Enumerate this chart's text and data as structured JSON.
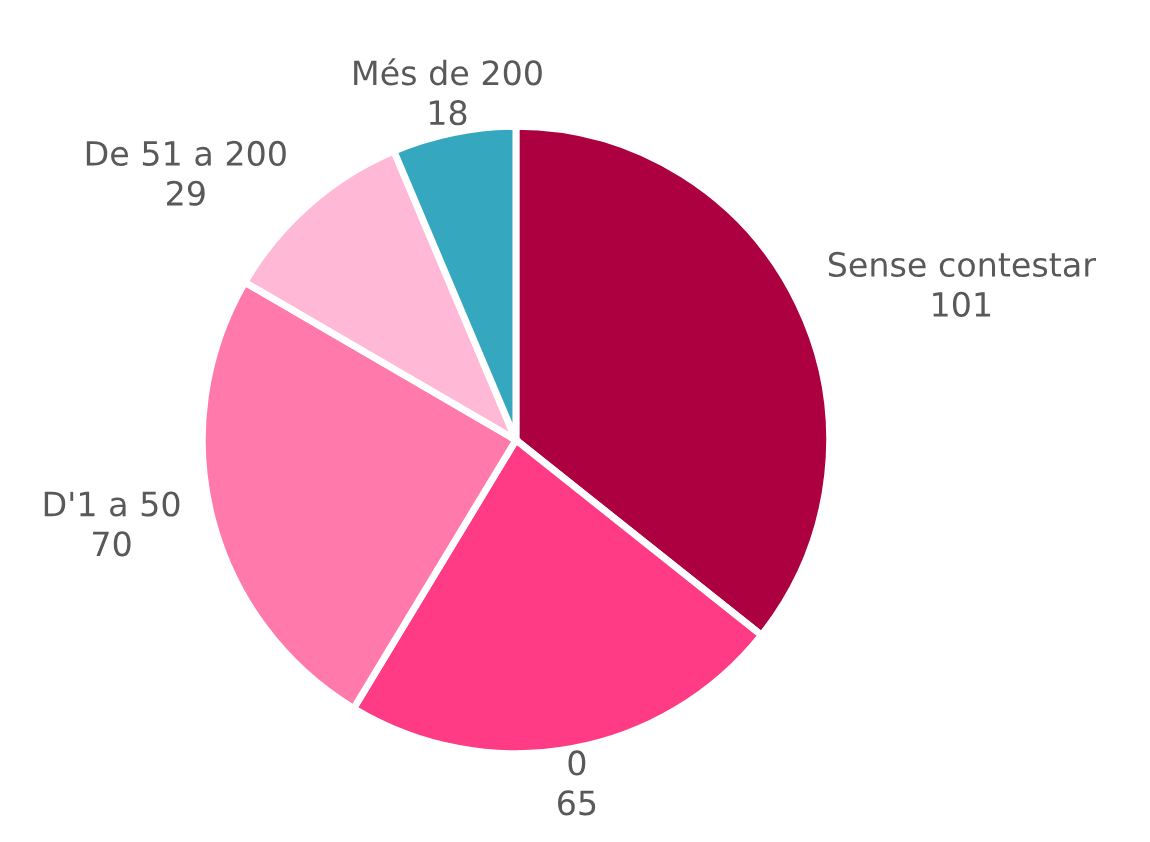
{
  "chart_data": {
    "type": "pie",
    "categories": [
      "Sense contestar",
      "0",
      "D'1 a 50",
      "De 51 a 200",
      "Més de 200"
    ],
    "values": [
      101,
      65,
      70,
      29,
      18
    ],
    "colors": [
      "#ad0040",
      "#ff3b85",
      "#ff7aab",
      "#ffb8d5",
      "#35a8c0"
    ],
    "data_labels": true,
    "legend": false
  }
}
